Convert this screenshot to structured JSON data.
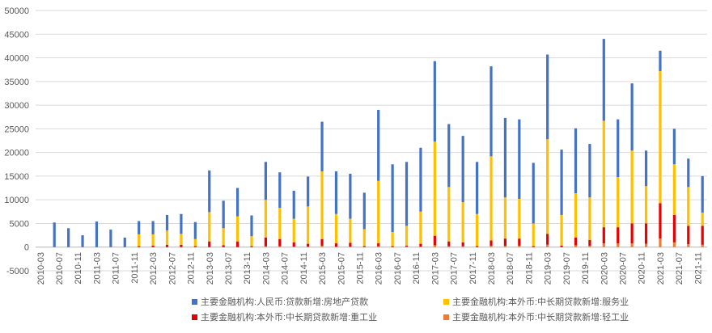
{
  "chart_data": {
    "type": "stacked_bar",
    "x": [
      "2010-06",
      "2010-09",
      "2010-12",
      "2011-03",
      "2011-06",
      "2011-09",
      "2011-12",
      "2012-03",
      "2012-06",
      "2012-09",
      "2012-12",
      "2013-03",
      "2013-06",
      "2013-09",
      "2013-12",
      "2014-03",
      "2014-06",
      "2014-09",
      "2014-12",
      "2015-03",
      "2015-06",
      "2015-09",
      "2015-12",
      "2016-03",
      "2016-06",
      "2016-09",
      "2016-12",
      "2017-03",
      "2017-06",
      "2017-09",
      "2017-12",
      "2018-03",
      "2018-06",
      "2018-09",
      "2018-12",
      "2019-03",
      "2019-06",
      "2019-09",
      "2019-12",
      "2020-03",
      "2020-06",
      "2020-09",
      "2020-12",
      "2021-03",
      "2021-06",
      "2021-09",
      "2021-12"
    ],
    "xlim": [
      "2010-02",
      "2022-01"
    ],
    "xticks": [
      "2010-03",
      "2010-07",
      "2010-11",
      "2011-03",
      "2011-07",
      "2011-11",
      "2012-03",
      "2012-07",
      "2012-11",
      "2013-03",
      "2013-07",
      "2013-11",
      "2014-03",
      "2014-07",
      "2014-11",
      "2015-03",
      "2015-07",
      "2015-11",
      "2016-03",
      "2016-07",
      "2016-11",
      "2017-03",
      "2017-07",
      "2017-11",
      "2018-03",
      "2018-07",
      "2018-11",
      "2019-03",
      "2019-07",
      "2019-11",
      "2020-03",
      "2020-07",
      "2020-11",
      "2021-03",
      "2021-07",
      "2021-11"
    ],
    "ylim": [
      -5000,
      50000
    ],
    "yticks": [
      -5000,
      0,
      5000,
      10000,
      15000,
      20000,
      25000,
      30000,
      35000,
      40000,
      45000,
      50000
    ],
    "grid": true,
    "legend": "bottom",
    "series": [
      {
        "name": "主要金融机构:人民币:贷款新增:房地产贷款",
        "color": "#4472c4",
        "values": [
          5200,
          4000,
          2500,
          5400,
          3700,
          2000,
          2800,
          2800,
          3300,
          4200,
          3600,
          8800,
          5800,
          6000,
          4400,
          8000,
          7500,
          5900,
          6300,
          10500,
          9000,
          9500,
          7700,
          15000,
          14300,
          13500,
          13500,
          17000,
          13300,
          14000,
          11000,
          19000,
          16800,
          16800,
          12800,
          17900,
          13800,
          13700,
          11300,
          17300,
          12200,
          14200,
          7500,
          4300,
          7500,
          6000,
          7700
        ]
      },
      {
        "name": "主要金融机构:本外币:中长期贷款新增:服务业",
        "color": "#ffc000",
        "values": [
          0,
          0,
          0,
          0,
          0,
          0,
          2500,
          2400,
          3000,
          2300,
          1500,
          6200,
          3600,
          5300,
          2100,
          8000,
          6600,
          5000,
          7900,
          14300,
          6200,
          5100,
          3600,
          13200,
          3000,
          4200,
          6800,
          19900,
          11500,
          8500,
          6800,
          17800,
          8700,
          8400,
          4800,
          20000,
          6500,
          9400,
          9000,
          22500,
          10600,
          15400,
          7900,
          27900,
          10700,
          8200,
          2800
        ]
      },
      {
        "name": "主要金融机构:本外币:中长期贷款新增:重工业",
        "color": "#e60000",
        "values": [
          0,
          0,
          0,
          0,
          0,
          0,
          200,
          300,
          500,
          500,
          200,
          1200,
          400,
          1200,
          200,
          1800,
          1500,
          900,
          600,
          1400,
          700,
          800,
          200,
          600,
          200,
          200,
          600,
          2000,
          1000,
          800,
          200,
          1100,
          1500,
          1500,
          200,
          2300,
          300,
          1600,
          1200,
          3400,
          3400,
          4200,
          4300,
          7500,
          5800,
          3900,
          4000
        ]
      },
      {
        "name": "主要金融机构:本外币:中长期贷款新增:轻工业",
        "color": "#ed7d31",
        "values": [
          0,
          0,
          0,
          0,
          0,
          0,
          0,
          0,
          0,
          0,
          0,
          0,
          0,
          0,
          0,
          200,
          200,
          100,
          100,
          300,
          100,
          100,
          0,
          200,
          0,
          100,
          100,
          400,
          200,
          200,
          0,
          300,
          300,
          300,
          0,
          500,
          0,
          400,
          300,
          800,
          800,
          800,
          700,
          1800,
          1000,
          600,
          500
        ]
      }
    ]
  }
}
